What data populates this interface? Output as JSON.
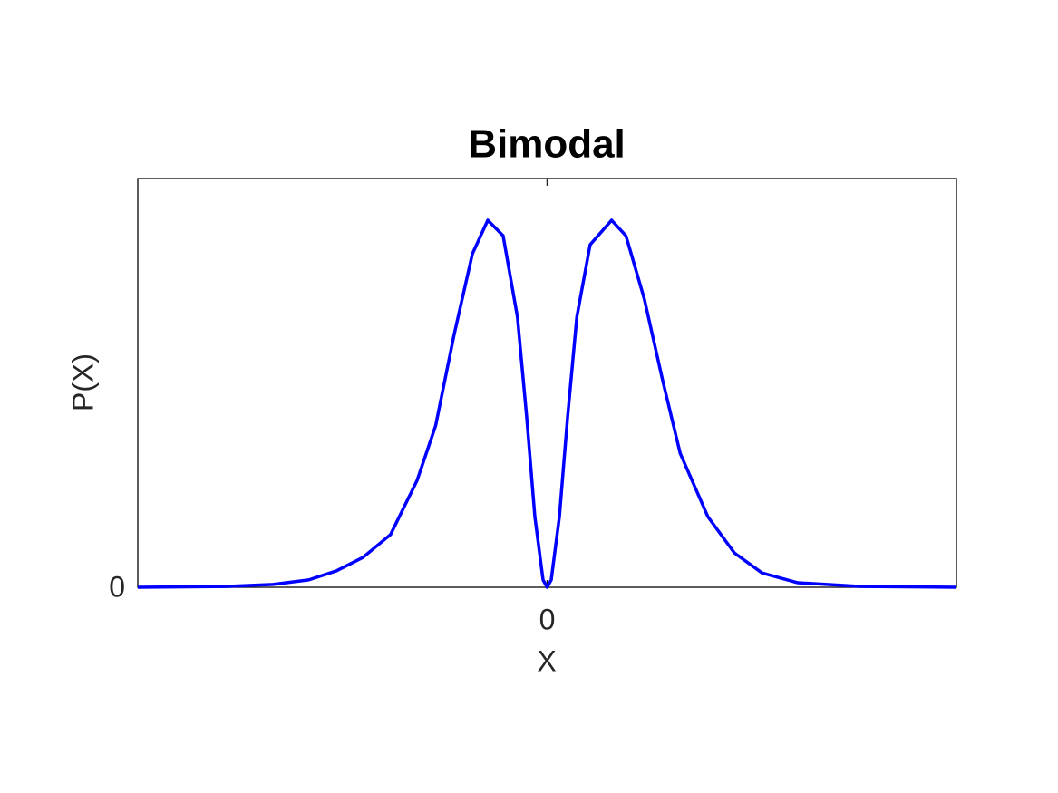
{
  "chart_data": {
    "type": "line",
    "title": "Bimodal",
    "x_label": "X",
    "y_label": "P(X)",
    "x": [
      -4.0,
      -3.13,
      -2.68,
      -2.33,
      -2.06,
      -1.8,
      -1.53,
      -1.27,
      -1.09,
      -0.91,
      -0.73,
      -0.58,
      -0.43,
      -0.29,
      -0.2,
      -0.12,
      -0.04,
      0,
      0.04,
      0.12,
      0.2,
      0.29,
      0.42,
      0.63,
      0.77,
      0.95,
      1.13,
      1.3,
      1.57,
      1.83,
      2.1,
      2.45,
      3.07,
      4.0
    ],
    "series": [
      {
        "color": "#0000ff",
        "values": [
          0,
          0.002,
          0.007,
          0.018,
          0.04,
          0.073,
          0.129,
          0.262,
          0.395,
          0.617,
          0.816,
          0.898,
          0.86,
          0.661,
          0.417,
          0.173,
          0.018,
          0,
          0.018,
          0.173,
          0.417,
          0.661,
          0.838,
          0.898,
          0.86,
          0.705,
          0.505,
          0.328,
          0.173,
          0.084,
          0.035,
          0.011,
          0.002,
          0
        ]
      }
    ],
    "xlim": [
      -4,
      4
    ],
    "ylim": [
      0,
      1
    ],
    "xticks": [
      0
    ],
    "yticks": [
      0
    ],
    "grid": false
  }
}
